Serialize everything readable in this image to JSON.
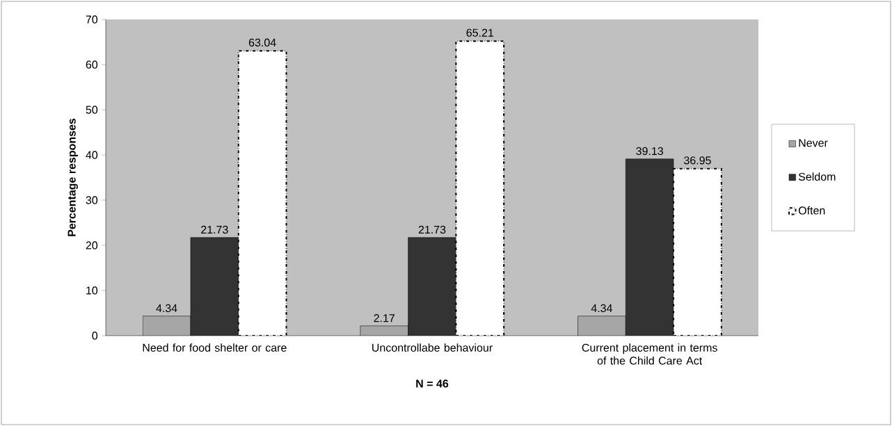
{
  "chart_data": {
    "type": "bar",
    "xlabel": "N = 46",
    "ylabel": "Percentage responses",
    "categories": [
      "Need for food shelter or care",
      "Uncontrollabe behaviour",
      "Current placement in terms of the Child Care Act"
    ],
    "series": [
      {
        "name": "Never",
        "color": "#a6a6a6",
        "values": [
          4.34,
          2.17,
          4.34
        ]
      },
      {
        "name": "Seldom",
        "color": "#333333",
        "values": [
          21.73,
          21.73,
          39.13
        ]
      },
      {
        "name": "Often",
        "color": "#ffffff",
        "line_style": "dashed",
        "values": [
          63.04,
          65.21,
          36.95
        ]
      }
    ],
    "ylim": [
      0,
      70
    ],
    "yticks": [
      0,
      10,
      20,
      30,
      40,
      50,
      60,
      70
    ],
    "data_labels": true,
    "legend": "right",
    "grid": false
  }
}
